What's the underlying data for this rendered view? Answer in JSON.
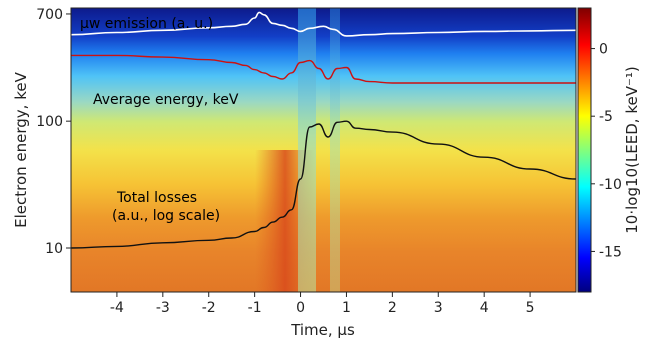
{
  "chart_data": {
    "type": "heatmap",
    "xlabel": "Time, μs",
    "ylabel": "Electron energy, keV",
    "colorbar_label": "10·log10(LEED, keV⁻¹)",
    "xlim": [
      -5,
      6
    ],
    "ylim": [
      4.5,
      780
    ],
    "yscale": "log",
    "x_ticks": [
      -4,
      -3,
      -2,
      -1,
      0,
      1,
      2,
      3,
      4,
      5
    ],
    "x_tick_labels": [
      "-4",
      "-3",
      "-2",
      "-1",
      "0",
      "1",
      "2",
      "3",
      "4",
      "5"
    ],
    "y_ticks": [
      10,
      100,
      700
    ],
    "y_tick_labels": [
      "10",
      "100",
      "700"
    ],
    "colorbar": {
      "range": [
        -18,
        3
      ],
      "ticks": [
        0,
        -5,
        -10,
        -15
      ],
      "tick_labels": [
        "0",
        "-5",
        "-10",
        "-15"
      ],
      "colormap": "jet"
    },
    "grid": false,
    "annotations": [
      {
        "text": "μw emission (a. u.)",
        "color": "#ffffff"
      },
      {
        "text": "Average energy, keV",
        "color": "#111111"
      },
      {
        "text": "Total losses",
        "color": "#111111"
      },
      {
        "text": "(a.u., log scale)",
        "color": "#111111"
      }
    ],
    "series": [
      {
        "key": "mw",
        "color": "#ffffff",
        "x": [
          -5,
          -4,
          -3,
          -2,
          -1.5,
          -1.2,
          -1.0,
          -0.9,
          -0.8,
          -0.6,
          -0.4,
          -0.2,
          0,
          0.2,
          0.5,
          0.7,
          1,
          1.5,
          2,
          3,
          4,
          5,
          6
        ],
        "y": [
          480,
          500,
          520,
          545,
          560,
          580,
          650,
          720,
          690,
          590,
          570,
          540,
          510,
          540,
          560,
          530,
          470,
          480,
          490,
          500,
          510,
          515,
          520
        ]
      },
      {
        "key": "avg",
        "color": "#cc1111",
        "x": [
          -5,
          -4,
          -3,
          -2,
          -1.5,
          -1.2,
          -1,
          -0.8,
          -0.6,
          -0.4,
          -0.2,
          0,
          0.2,
          0.4,
          0.6,
          0.8,
          1,
          1.2,
          1.5,
          2,
          3,
          4,
          5,
          6
        ],
        "y": [
          330,
          330,
          320,
          305,
          290,
          275,
          255,
          240,
          225,
          215,
          240,
          290,
          300,
          260,
          215,
          260,
          265,
          215,
          205,
          200,
          200,
          200,
          200,
          200
        ]
      },
      {
        "key": "loss",
        "color": "#111111",
        "x": [
          -5,
          -4,
          -3,
          -2,
          -1.5,
          -1,
          -0.8,
          -0.6,
          -0.4,
          -0.2,
          0,
          0.2,
          0.4,
          0.6,
          0.8,
          1,
          1.2,
          1.5,
          2,
          3,
          4,
          5,
          6
        ],
        "y": [
          10,
          10.3,
          11,
          11.5,
          12,
          13.5,
          14.5,
          16,
          17.5,
          20,
          35,
          90,
          95,
          75,
          98,
          100,
          88,
          86,
          82,
          66,
          52,
          42,
          35
        ]
      }
    ]
  }
}
